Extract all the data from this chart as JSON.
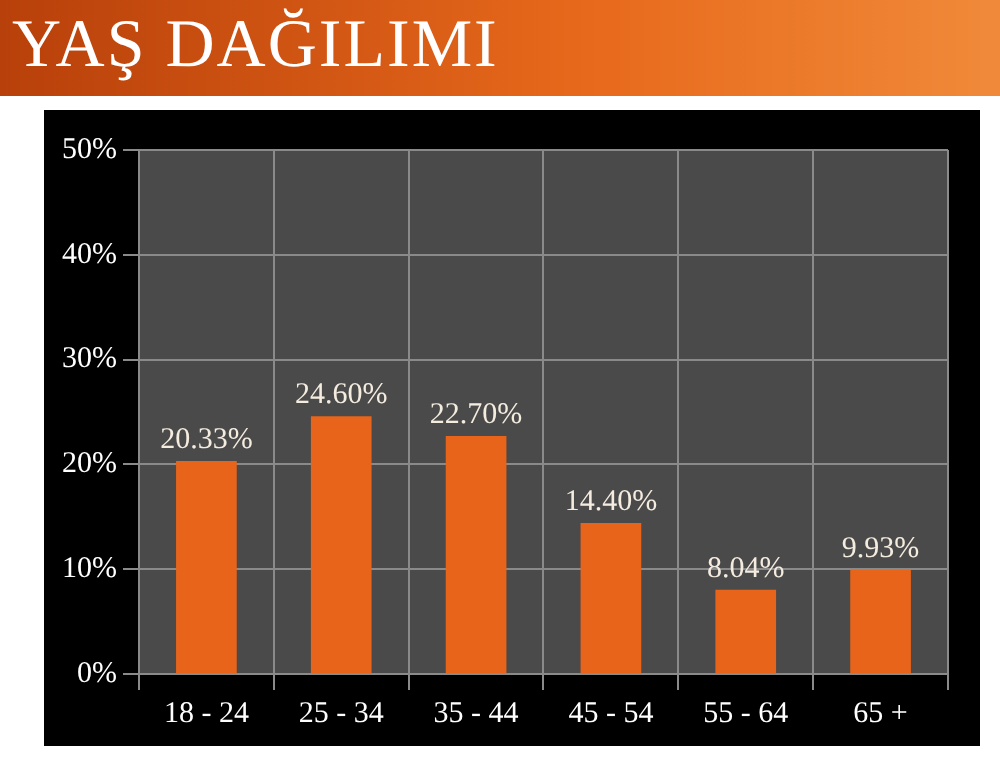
{
  "chart_data": {
    "type": "bar",
    "title": "YAŞ DAĞILIMI",
    "categories": [
      "18 - 24",
      "25 - 34",
      "35 - 44",
      "45 - 54",
      "55 - 64",
      "65 +"
    ],
    "values": [
      20.33,
      24.6,
      22.7,
      14.4,
      8.04,
      9.93
    ],
    "value_labels": [
      "20.33%",
      "24.60%",
      "22.70%",
      "14.40%",
      "8.04%",
      "9.93%"
    ],
    "color": "#e8641a",
    "ylim": [
      0,
      50
    ],
    "yticks": [
      {
        "value": 0,
        "label": "0%"
      },
      {
        "value": 10,
        "label": "10%"
      },
      {
        "value": 20,
        "label": "20%"
      },
      {
        "value": 30,
        "label": "30%"
      },
      {
        "value": 40,
        "label": "40%"
      },
      {
        "value": 50,
        "label": "50%"
      }
    ],
    "grid": true
  }
}
